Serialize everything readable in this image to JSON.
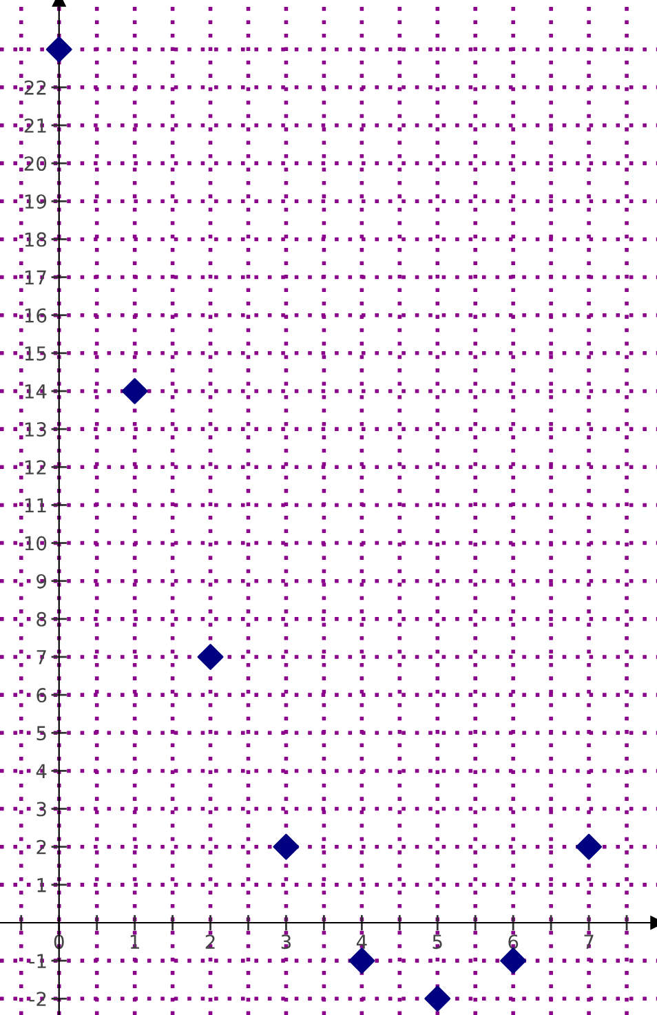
{
  "chart_data": {
    "type": "scatter",
    "x": [
      0,
      1,
      2,
      3,
      4,
      5,
      6,
      7
    ],
    "series": [
      {
        "color": "#000080",
        "values": [
          23,
          14,
          7,
          2,
          -1,
          -2,
          -1,
          2
        ]
      }
    ],
    "marker": "diamond",
    "xlim": [
      -0.78,
      7.9
    ],
    "ylim": [
      -2.43,
      24.3
    ],
    "xticks": [
      {
        "value": -0.5,
        "label": null
      },
      0,
      {
        "value": 0.5,
        "label": null
      },
      1,
      {
        "value": 1.5,
        "label": null
      },
      2,
      {
        "value": 2.5,
        "label": null
      },
      3,
      {
        "value": 3.5,
        "label": null
      },
      4,
      {
        "value": 4.5,
        "label": null
      },
      5,
      {
        "value": 5.5,
        "label": null
      },
      6,
      {
        "value": 6.5,
        "label": null
      },
      7,
      {
        "value": 7.5,
        "label": null
      }
    ],
    "yticks": [
      -2,
      -1,
      1,
      2,
      3,
      4,
      5,
      6,
      7,
      8,
      9,
      10,
      11,
      12,
      13,
      14,
      15,
      16,
      17,
      18,
      19,
      20,
      21,
      22,
      {
        "value": 23,
        "label": null
      }
    ],
    "grid": true
  }
}
